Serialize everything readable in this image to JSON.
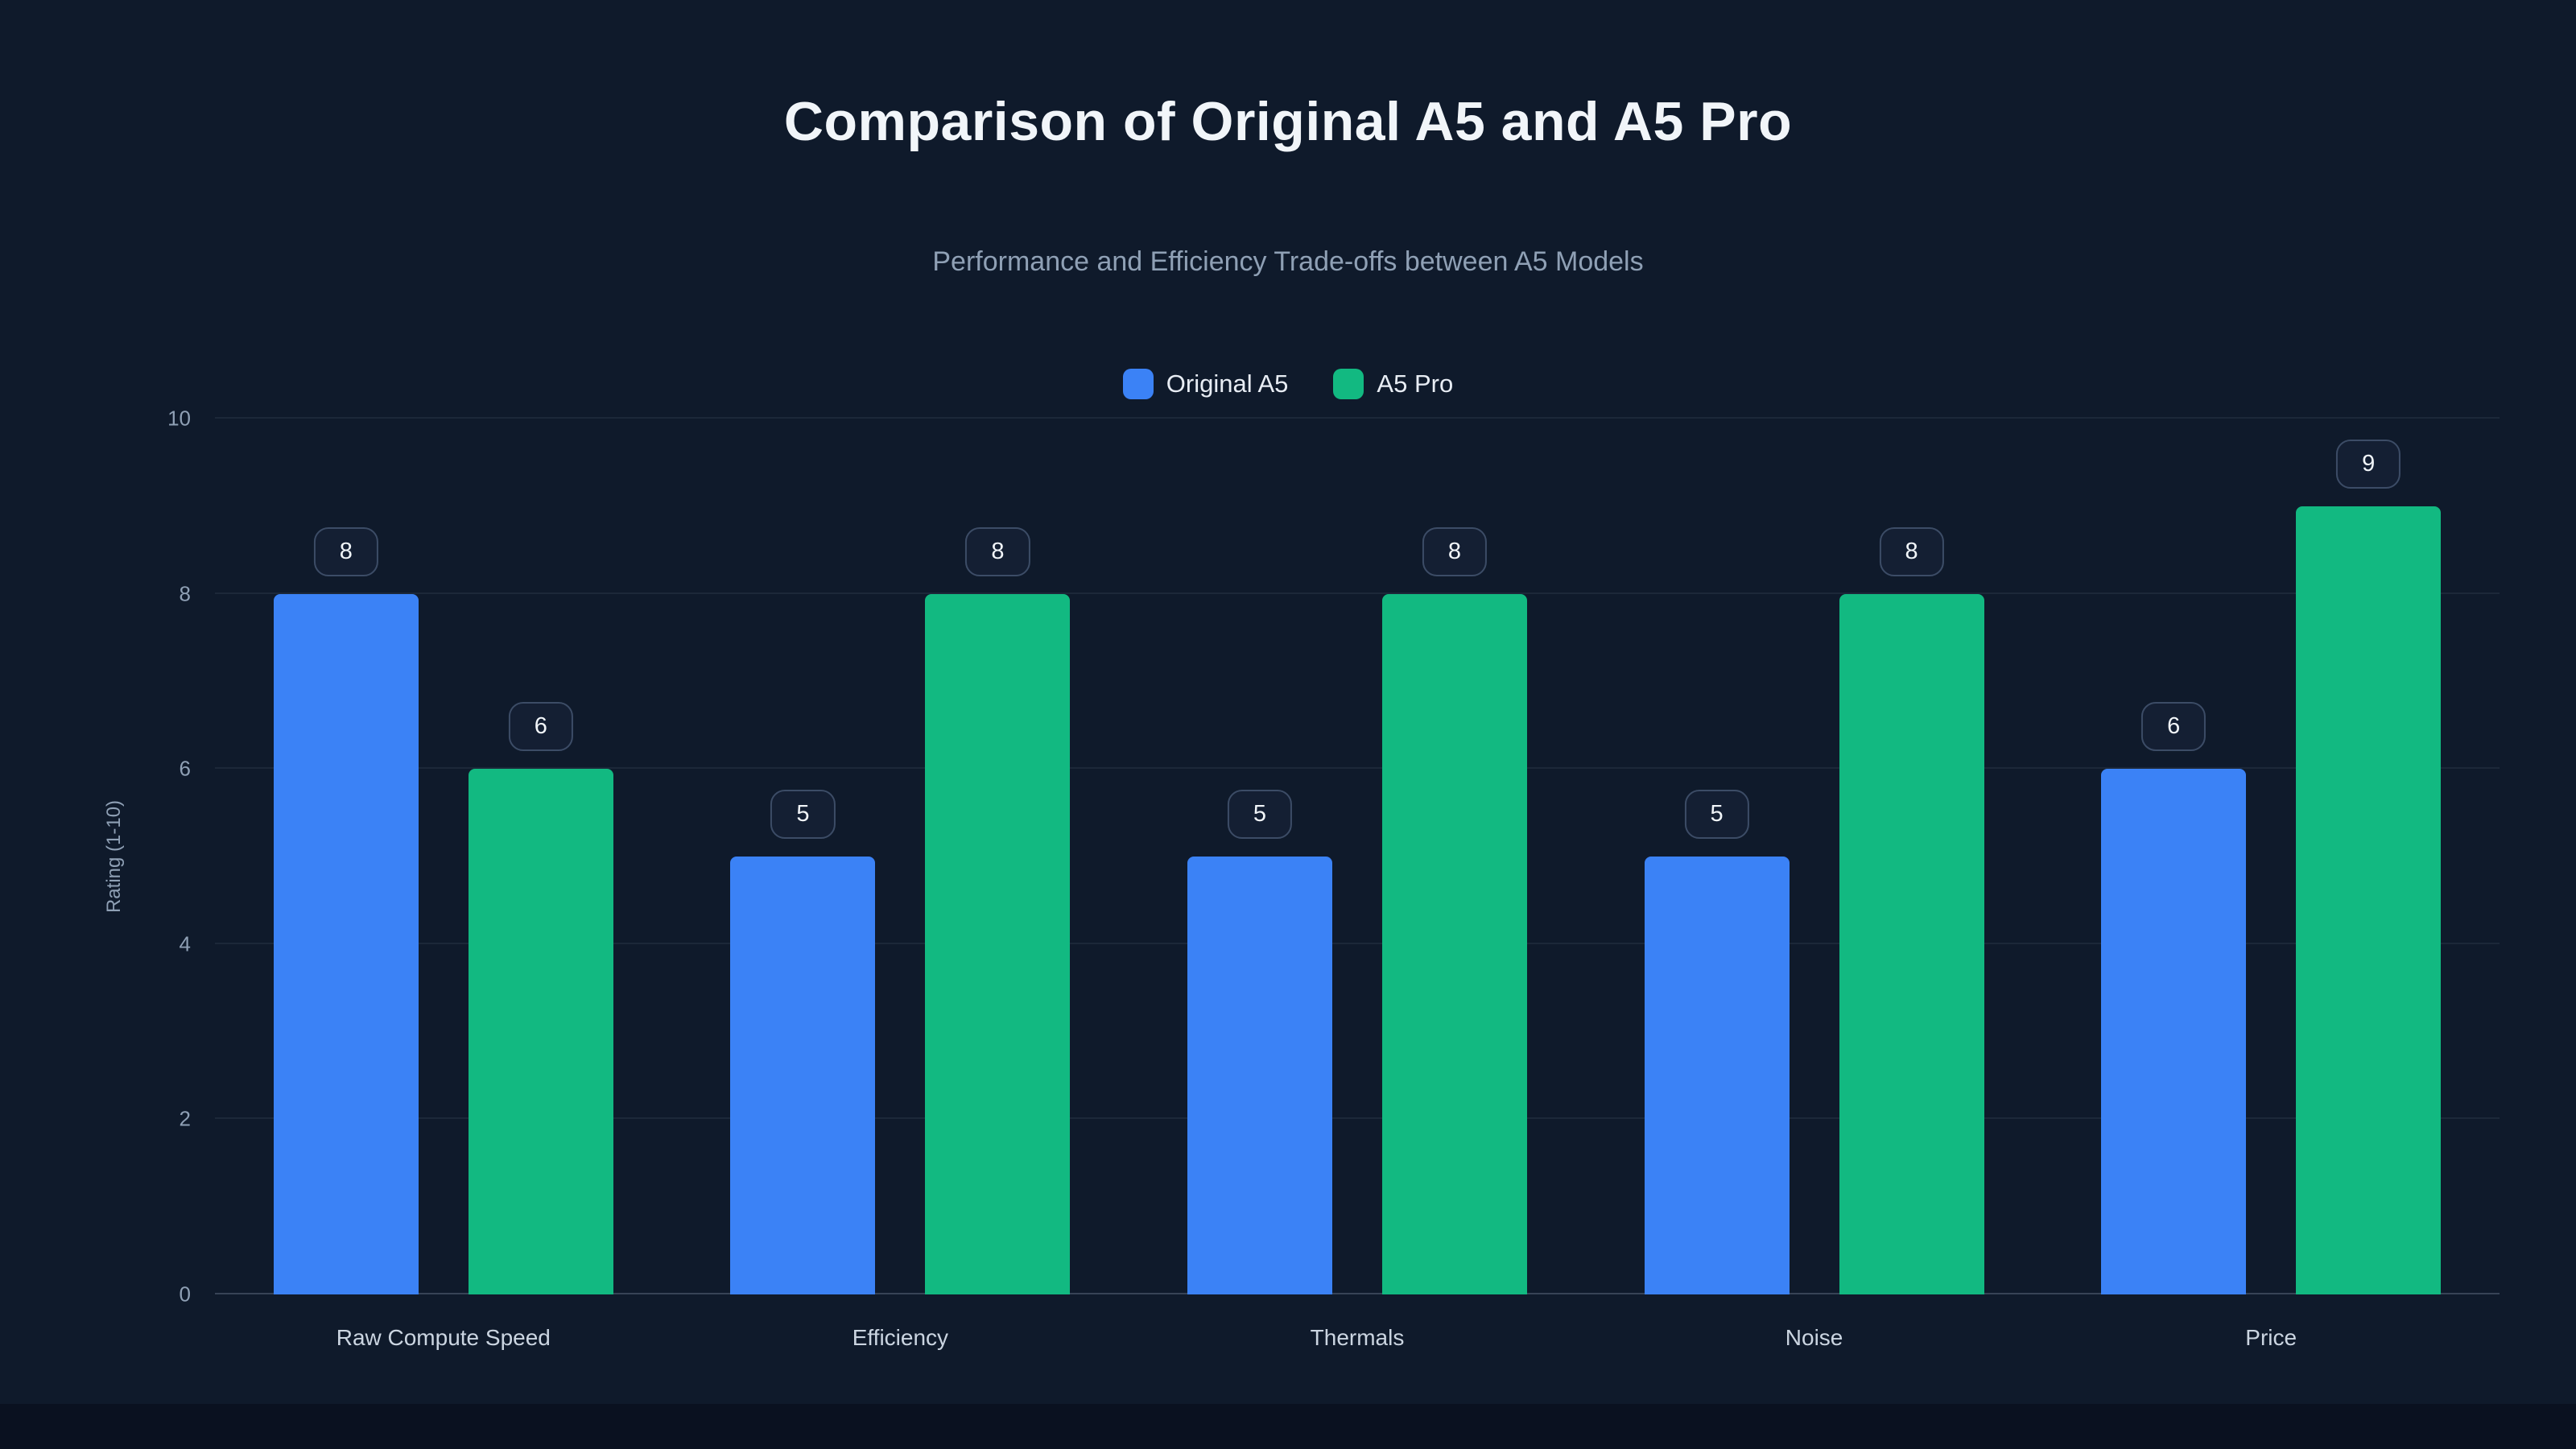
{
  "chart_data": {
    "type": "bar",
    "title": "Comparison of Original A5 and A5 Pro",
    "subtitle": "Performance and Efficiency Trade-offs between A5 Models",
    "categories": [
      "Raw Compute Speed",
      "Efficiency",
      "Thermals",
      "Noise",
      "Price"
    ],
    "series": [
      {
        "name": "Original A5",
        "color": "#3b82f6",
        "values": [
          8,
          5,
          5,
          5,
          6
        ]
      },
      {
        "name": "A5 Pro",
        "color": "#12b981",
        "values": [
          6,
          8,
          8,
          8,
          9
        ]
      }
    ],
    "xlabel": "",
    "ylabel": "Rating (1-10)",
    "ylim": [
      0,
      10
    ],
    "yticks": [
      0,
      2,
      4,
      6,
      8,
      10
    ],
    "grid": true,
    "legend_position": "top",
    "data_labels": true
  },
  "colors": {
    "background": "#0f1a2b",
    "footer_strip": "#0a1120",
    "series_original_a5": "#3b82f6",
    "series_a5_pro": "#12b981",
    "badge_background": "#141f33",
    "badge_border": "#3c4c66",
    "text_primary": "#f1f5f9",
    "text_muted": "#8fa0b5",
    "gridline": "rgba(148,163,184,0.10)"
  }
}
